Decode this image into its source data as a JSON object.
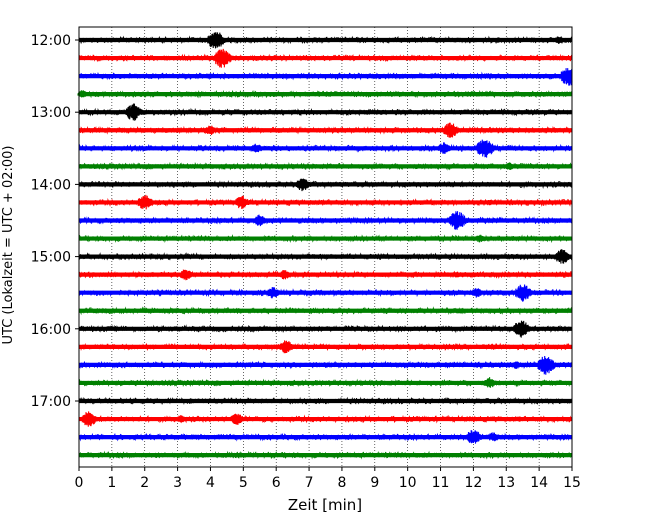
{
  "chart_data": {
    "type": "line",
    "subtype": "helicorder-seismogram",
    "xlabel": "Zeit  [min]",
    "ylabel": "UTC (Lokalzeit = UTC + 02:00)",
    "xlim": [
      0,
      15
    ],
    "x_ticks": [
      "0",
      "1",
      "2",
      "3",
      "4",
      "5",
      "6",
      "7",
      "8",
      "9",
      "10",
      "11",
      "12",
      "13",
      "14",
      "15"
    ],
    "y_tick_labels": [
      "12:00",
      "13:00",
      "14:00",
      "15:00",
      "16:00",
      "17:00"
    ],
    "grid": "vertical dotted lines at each minute",
    "colors": [
      "#000000",
      "#ff0000",
      "#0000ff",
      "#008000"
    ],
    "trace_rows": [
      {
        "start": "12:00",
        "color": "#000000",
        "events": [
          {
            "t": 4.15,
            "amp": 10
          },
          {
            "t": 14.6,
            "amp": 4
          }
        ]
      },
      {
        "start": "12:15",
        "color": "#ff0000",
        "events": [
          {
            "t": 4.35,
            "amp": 10
          },
          {
            "t": 11.3,
            "amp": 2
          }
        ]
      },
      {
        "start": "12:30",
        "color": "#0000ff",
        "events": [
          {
            "t": 14.9,
            "amp": 10
          }
        ]
      },
      {
        "start": "12:45",
        "color": "#008000",
        "events": [
          {
            "t": 0.1,
            "amp": 4
          }
        ]
      },
      {
        "start": "13:00",
        "color": "#000000",
        "events": [
          {
            "t": 1.65,
            "amp": 9
          }
        ]
      },
      {
        "start": "13:15",
        "color": "#ff0000",
        "events": [
          {
            "t": 4.0,
            "amp": 5
          },
          {
            "t": 11.3,
            "amp": 8
          }
        ]
      },
      {
        "start": "13:30",
        "color": "#0000ff",
        "events": [
          {
            "t": 5.4,
            "amp": 5
          },
          {
            "t": 11.1,
            "amp": 6
          },
          {
            "t": 12.35,
            "amp": 10
          }
        ]
      },
      {
        "start": "13:45",
        "color": "#008000",
        "events": [
          {
            "t": 1.2,
            "amp": 2
          },
          {
            "t": 13.1,
            "amp": 4
          }
        ]
      },
      {
        "start": "14:00",
        "color": "#000000",
        "events": [
          {
            "t": 6.8,
            "amp": 7
          }
        ]
      },
      {
        "start": "14:15",
        "color": "#ff0000",
        "events": [
          {
            "t": 2.0,
            "amp": 8
          },
          {
            "t": 4.95,
            "amp": 7
          },
          {
            "t": 12.5,
            "amp": 3
          }
        ]
      },
      {
        "start": "14:30",
        "color": "#0000ff",
        "events": [
          {
            "t": 5.5,
            "amp": 6
          },
          {
            "t": 11.5,
            "amp": 10
          }
        ]
      },
      {
        "start": "14:45",
        "color": "#008000",
        "events": [
          {
            "t": 12.2,
            "amp": 4
          }
        ]
      },
      {
        "start": "15:00",
        "color": "#000000",
        "events": [
          {
            "t": 14.7,
            "amp": 8
          }
        ]
      },
      {
        "start": "15:15",
        "color": "#ff0000",
        "events": [
          {
            "t": 3.25,
            "amp": 6
          },
          {
            "t": 6.25,
            "amp": 5
          },
          {
            "t": 11.5,
            "amp": 3
          }
        ]
      },
      {
        "start": "15:30",
        "color": "#0000ff",
        "events": [
          {
            "t": 5.9,
            "amp": 6
          },
          {
            "t": 12.1,
            "amp": 5
          },
          {
            "t": 13.5,
            "amp": 9
          }
        ]
      },
      {
        "start": "15:45",
        "color": "#008000",
        "events": [
          {
            "t": 11.6,
            "amp": 3
          }
        ]
      },
      {
        "start": "16:00",
        "color": "#000000",
        "events": [
          {
            "t": 13.45,
            "amp": 9
          }
        ]
      },
      {
        "start": "16:15",
        "color": "#ff0000",
        "events": [
          {
            "t": 6.3,
            "amp": 7
          },
          {
            "t": 12.6,
            "amp": 3
          }
        ]
      },
      {
        "start": "16:30",
        "color": "#0000ff",
        "events": [
          {
            "t": 13.3,
            "amp": 4
          },
          {
            "t": 14.2,
            "amp": 10
          }
        ]
      },
      {
        "start": "16:45",
        "color": "#008000",
        "events": [
          {
            "t": 12.5,
            "amp": 6
          }
        ]
      },
      {
        "start": "17:00",
        "color": "#000000",
        "events": []
      },
      {
        "start": "17:15",
        "color": "#ff0000",
        "events": [
          {
            "t": 0.3,
            "amp": 8
          },
          {
            "t": 3.1,
            "amp": 4
          },
          {
            "t": 4.8,
            "amp": 6
          }
        ]
      },
      {
        "start": "17:30",
        "color": "#0000ff",
        "events": [
          {
            "t": 12.0,
            "amp": 8
          },
          {
            "t": 12.6,
            "amp": 5
          }
        ]
      },
      {
        "start": "17:45",
        "color": "#008000",
        "events": []
      }
    ]
  }
}
